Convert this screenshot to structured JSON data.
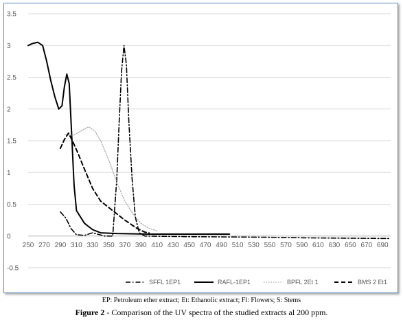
{
  "chart_data": {
    "type": "line",
    "title": "",
    "xlabel": "",
    "ylabel": "",
    "xlim": [
      250,
      700
    ],
    "ylim": [
      -0.5,
      3.5
    ],
    "x_ticks": [
      250,
      270,
      290,
      310,
      330,
      350,
      370,
      390,
      410,
      430,
      450,
      470,
      490,
      510,
      530,
      550,
      570,
      590,
      610,
      630,
      650,
      670,
      690
    ],
    "y_ticks": [
      3.5,
      3,
      2.5,
      2,
      1.5,
      1,
      0.5,
      0,
      -0.5
    ],
    "y_tick_labels": [
      "3.5",
      "3",
      "2.5",
      "2",
      "1.5",
      "1",
      "0.5",
      "0",
      "-0.5"
    ],
    "grid": true,
    "legend": "bottom",
    "series": [
      {
        "name": "SFFL 1EP1",
        "style": "dashdot",
        "color": "#000000",
        "points": [
          [
            290,
            0.38
          ],
          [
            297,
            0.28
          ],
          [
            303,
            0.12
          ],
          [
            310,
            0.02
          ],
          [
            320,
            0.01
          ],
          [
            330,
            0.05
          ],
          [
            345,
            0.0
          ],
          [
            355,
            0.0
          ],
          [
            360,
            0.9
          ],
          [
            363,
            1.8
          ],
          [
            366,
            2.6
          ],
          [
            369,
            3.0
          ],
          [
            372,
            2.7
          ],
          [
            375,
            1.8
          ],
          [
            379,
            0.9
          ],
          [
            383,
            0.3
          ],
          [
            388,
            0.05
          ],
          [
            395,
            0.0
          ],
          [
            450,
            -0.01
          ],
          [
            550,
            -0.02
          ],
          [
            600,
            -0.03
          ],
          [
            700,
            -0.04
          ]
        ]
      },
      {
        "name": "RAFL-1EP1",
        "style": "solid",
        "color": "#000000",
        "points": [
          [
            250,
            3.0
          ],
          [
            255,
            3.03
          ],
          [
            262,
            3.05
          ],
          [
            268,
            3.0
          ],
          [
            273,
            2.75
          ],
          [
            278,
            2.45
          ],
          [
            283,
            2.2
          ],
          [
            288,
            2.0
          ],
          [
            292,
            2.05
          ],
          [
            295,
            2.35
          ],
          [
            298,
            2.55
          ],
          [
            301,
            2.4
          ],
          [
            304,
            1.6
          ],
          [
            307,
            0.8
          ],
          [
            310,
            0.4
          ],
          [
            320,
            0.2
          ],
          [
            330,
            0.1
          ],
          [
            340,
            0.05
          ],
          [
            360,
            0.04
          ],
          [
            400,
            0.03
          ],
          [
            450,
            0.03
          ],
          [
            500,
            0.03
          ]
        ]
      },
      {
        "name": "BPFL 2Et 1",
        "style": "dotted",
        "color": "#a6a6a6",
        "points": [
          [
            296,
            1.6
          ],
          [
            305,
            1.58
          ],
          [
            315,
            1.65
          ],
          [
            325,
            1.72
          ],
          [
            333,
            1.65
          ],
          [
            340,
            1.5
          ],
          [
            350,
            1.2
          ],
          [
            360,
            0.85
          ],
          [
            370,
            0.55
          ],
          [
            380,
            0.35
          ],
          [
            390,
            0.2
          ],
          [
            400,
            0.12
          ],
          [
            410,
            0.08
          ]
        ]
      },
      {
        "name": "BMS 2 Et1",
        "style": "dashed",
        "color": "#000000",
        "points": [
          [
            290,
            1.38
          ],
          [
            295,
            1.52
          ],
          [
            300,
            1.62
          ],
          [
            305,
            1.5
          ],
          [
            312,
            1.3
          ],
          [
            320,
            1.05
          ],
          [
            330,
            0.75
          ],
          [
            340,
            0.55
          ],
          [
            355,
            0.4
          ],
          [
            370,
            0.25
          ],
          [
            385,
            0.12
          ],
          [
            395,
            0.06
          ],
          [
            400,
            0.05
          ]
        ]
      }
    ]
  },
  "caption": {
    "note": "EP: Petroleum ether extract; Et: Ethanolic extract; Fl: Flowers; S: Stems",
    "figure_label": "Figure 2",
    "figure_text": " - Comparison of the UV spectra of the studied extracts al 200 ppm."
  }
}
